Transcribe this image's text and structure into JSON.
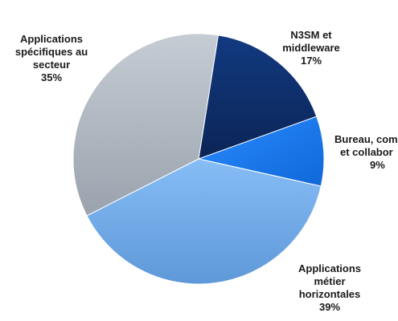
{
  "chart_data": {
    "type": "pie",
    "slices": [
      {
        "name_lines": [
          "N3SM et",
          "middleware"
        ],
        "value": 17,
        "value_label": "17%",
        "color": "#0e2f6b"
      },
      {
        "name_lines": [
          "Bureau, com",
          "et collabor"
        ],
        "value": 9,
        "value_label": "9%",
        "color": "#1a7df0"
      },
      {
        "name_lines": [
          "Applications",
          "métier",
          "horizontales"
        ],
        "value": 39,
        "value_label": "39%",
        "color": "#7ab0ea"
      },
      {
        "name_lines": [
          "Applications",
          "spécifiques au",
          "secteur"
        ],
        "value": 35,
        "value_label": "35%",
        "color": "#b4bcc5"
      }
    ],
    "start_angle_deg": -81,
    "direction": "clockwise",
    "legend": "none"
  }
}
